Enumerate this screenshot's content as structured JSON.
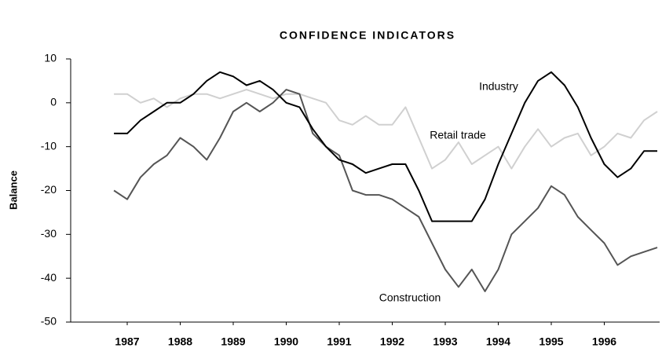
{
  "chart_data": {
    "type": "line",
    "title": "CONFIDENCE INDICATORS",
    "y_label": "Balance",
    "categories": [
      null,
      "1987",
      null,
      null,
      null,
      "1988",
      null,
      null,
      null,
      "1989",
      null,
      null,
      null,
      "1990",
      null,
      null,
      null,
      "1991",
      null,
      null,
      null,
      "1992",
      null,
      null,
      null,
      "1993",
      null,
      null,
      null,
      "1994",
      null,
      null,
      null,
      "1995",
      null,
      null,
      null,
      "1996",
      null,
      null,
      null,
      null
    ],
    "series": [
      {
        "name": "Industry",
        "color": "#000000",
        "values": [
          -7,
          -7,
          -4,
          -2,
          0,
          0,
          2,
          5,
          7,
          6,
          4,
          5,
          3,
          0,
          -1,
          -6,
          -10,
          -13,
          -14,
          -16,
          -15,
          -14,
          -14,
          -20,
          -27,
          -27,
          -27,
          -27,
          -22,
          -14,
          -7,
          0,
          5,
          7,
          4,
          -1,
          -8,
          -14,
          -17,
          -15,
          -11,
          -11
        ]
      },
      {
        "name": "Retail trade",
        "color": "#d0d0d0",
        "values": [
          2,
          2,
          0,
          1,
          -1,
          1,
          2,
          2,
          1,
          2,
          3,
          2,
          1,
          2,
          2,
          1,
          0,
          -4,
          -5,
          -3,
          -5,
          -5,
          -1,
          -8,
          -15,
          -13,
          -9,
          -14,
          -12,
          -10,
          -15,
          -10,
          -6,
          -10,
          -8,
          -7,
          -12,
          -10,
          -7,
          -8,
          -4,
          -2
        ]
      },
      {
        "name": "Construction",
        "color": "#555555",
        "values": [
          -20,
          -22,
          -17,
          -14,
          -12,
          -8,
          -10,
          -13,
          -8,
          -2,
          0,
          -2,
          0,
          3,
          2,
          -7,
          -10,
          -12,
          -20,
          -21,
          -21,
          -22,
          -24,
          -26,
          -32,
          -38,
          -42,
          -38,
          -43,
          -38,
          -30,
          -27,
          -24,
          -19,
          -21,
          -26,
          -29,
          -32,
          -37,
          -35,
          -34,
          -33
        ]
      }
    ],
    "ylim": [
      -50,
      10
    ],
    "yticks": [
      -50,
      -40,
      -30,
      -20,
      -10,
      0,
      10
    ]
  }
}
